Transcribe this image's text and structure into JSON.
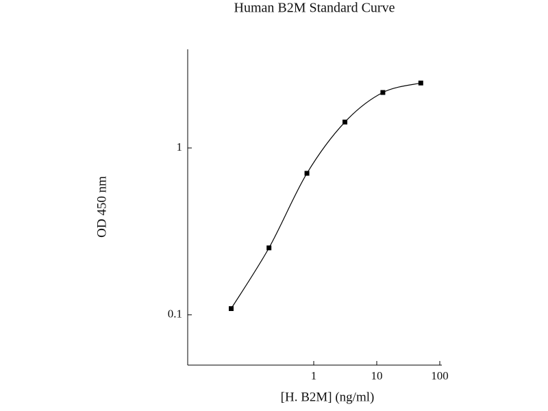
{
  "chart_data": {
    "type": "scatter",
    "title": "Human B2M Standard Curve",
    "x_label": "[H. B2M] (ng/ml)",
    "y_label": "OD 450 nm",
    "x": [
      0.049,
      0.195,
      0.78,
      3.125,
      12.5,
      50
    ],
    "values": [
      0.109,
      0.252,
      0.705,
      1.43,
      2.15,
      2.45
    ],
    "color": "#000000",
    "xscale": "log",
    "yscale": "log",
    "xlim": [
      0.01,
      100
    ],
    "ylim": [
      0.05,
      3.9
    ],
    "xticks": [
      1,
      10,
      100
    ],
    "yticks": [
      0.1,
      1
    ],
    "grid": false
  }
}
